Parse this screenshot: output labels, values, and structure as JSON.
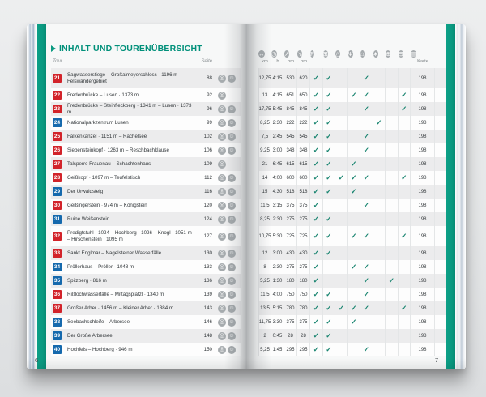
{
  "colors": {
    "teal_accent": "#0a9a81",
    "badge_red": "#d2232a",
    "badge_blue": "#1569ad",
    "check_teal": "#14826d"
  },
  "left_page": {
    "title": "INHALT UND TOURENÜBERSICHT",
    "col_tour": "Tour",
    "col_seite": "Seite",
    "folio": "6",
    "rows": [
      {
        "nr": "21",
        "color": "red",
        "title": "Sagwasserstiege – Großalmeyerschloss · 1196 m – Felswandergebiet",
        "seite": "88",
        "icons": [
          "camera",
          "smiley"
        ],
        "tall": true
      },
      {
        "nr": "22",
        "color": "red",
        "title": "Fredenbrücke – Lusen · 1373 m",
        "seite": "92",
        "icons": [
          "camera"
        ]
      },
      {
        "nr": "23",
        "color": "red",
        "title": "Fredenbrücke – Steinfleckberg · 1341 m – Lusen · 1373 m",
        "seite": "96",
        "icons": [
          "camera",
          "smiley"
        ]
      },
      {
        "nr": "24",
        "color": "blue",
        "title": "Nationalparkzentrum Lusen",
        "seite": "99",
        "icons": [
          "camera",
          "smiley"
        ]
      },
      {
        "nr": "25",
        "color": "red",
        "title": "Falkenkanzel · 1151 m – Rachelsee",
        "seite": "102",
        "icons": [
          "camera",
          "smiley"
        ]
      },
      {
        "nr": "26",
        "color": "red",
        "title": "Siebensteinkopf · 1263 m – Reschbachklause",
        "seite": "106",
        "icons": [
          "camera",
          "smiley"
        ]
      },
      {
        "nr": "27",
        "color": "red",
        "title": "Talsperre Frauenau – Schachtenhaus",
        "seite": "109",
        "icons": [
          "camera"
        ]
      },
      {
        "nr": "28",
        "color": "red",
        "title": "Geißkopf · 1097 m – Teufelstisch",
        "seite": "112",
        "icons": [
          "camera",
          "smiley"
        ]
      },
      {
        "nr": "29",
        "color": "blue",
        "title": "Der Urwaldsteig",
        "seite": "116",
        "icons": [
          "camera",
          "smiley"
        ]
      },
      {
        "nr": "30",
        "color": "red",
        "title": "Geißingerstein · 974 m – Königstein",
        "seite": "120",
        "icons": [
          "camera",
          "smiley"
        ]
      },
      {
        "nr": "31",
        "color": "blue",
        "title": "Ruine Weißenstein",
        "seite": "124",
        "icons": [
          "camera",
          "smiley"
        ]
      },
      {
        "nr": "32",
        "color": "red",
        "title": "Predigtstuhl · 1024 – Hochberg · 1026 – Knogl · 1051 m – Hirschenstein · 1095 m",
        "seite": "127",
        "icons": [
          "camera",
          "smiley"
        ],
        "tall": true
      },
      {
        "nr": "33",
        "color": "red",
        "title": "Sankt Englmar – Nagelsteiner Wasserfälle",
        "seite": "130",
        "icons": [
          "camera",
          "smiley"
        ]
      },
      {
        "nr": "34",
        "color": "blue",
        "title": "Pröllerhaus – Pröller · 1048 m",
        "seite": "133",
        "icons": [
          "camera",
          "smiley"
        ]
      },
      {
        "nr": "35",
        "color": "blue",
        "title": "Spitzberg · 816 m",
        "seite": "136",
        "icons": [
          "camera",
          "smiley"
        ]
      },
      {
        "nr": "36",
        "color": "red",
        "title": "Rißlochwasserfälle – Mittagsplatzl · 1340 m",
        "seite": "139",
        "icons": [
          "camera",
          "smiley"
        ]
      },
      {
        "nr": "37",
        "color": "red",
        "title": "Großer Arber · 1456 m – Kleiner Arber · 1384 m",
        "seite": "143",
        "icons": [
          "camera",
          "smiley"
        ]
      },
      {
        "nr": "38",
        "color": "blue",
        "title": "Seebachschleife – Arbersee",
        "seite": "146",
        "icons": [
          "camera",
          "smiley"
        ]
      },
      {
        "nr": "39",
        "color": "blue",
        "title": "Der Große Arbersee",
        "seite": "148",
        "icons": [
          "camera",
          "smiley"
        ]
      },
      {
        "nr": "40",
        "color": "blue",
        "title": "Hochfels – Hochberg · 946 m",
        "seite": "150",
        "icons": [
          "camera",
          "smiley"
        ]
      }
    ]
  },
  "mini_icon_glyphs": {
    "camera": "◎",
    "smiley": "☺"
  },
  "right_page": {
    "folio": "7",
    "karte_label": "Karte",
    "check_glyph": "✓",
    "unit_labels": [
      "km",
      "h",
      "hm",
      "hm"
    ],
    "header_icons": [
      {
        "name": "distance-icon",
        "glyph": "↔"
      },
      {
        "name": "duration-icon",
        "glyph": "◷"
      },
      {
        "name": "ascent-icon",
        "glyph": "↗"
      },
      {
        "name": "descent-icon",
        "glyph": "↘"
      },
      {
        "name": "parking-icon",
        "glyph": "P"
      },
      {
        "name": "bus-icon",
        "glyph": "⊞"
      },
      {
        "name": "cable-car-icon",
        "glyph": "△"
      },
      {
        "name": "restaurant-icon",
        "glyph": "Ψ"
      },
      {
        "name": "hut-icon",
        "glyph": "⌂"
      },
      {
        "name": "winter-icon",
        "glyph": "∗"
      },
      {
        "name": "wheel-icon",
        "glyph": "⊕"
      },
      {
        "name": "stroller-icon",
        "glyph": "⊟"
      },
      {
        "name": "map-icon",
        "glyph": "▤"
      }
    ],
    "feature_columns": [
      "parking",
      "bus",
      "cable-car",
      "restaurant",
      "hut",
      "winter",
      "wheel",
      "stroller"
    ],
    "rows": [
      {
        "km": "12,75",
        "h": "4:15",
        "up": "530",
        "down": "620",
        "checks": [
          1,
          1,
          0,
          0,
          1,
          0,
          0,
          0
        ],
        "karte": "198"
      },
      {
        "km": "13",
        "h": "4:15",
        "up": "651",
        "down": "650",
        "checks": [
          1,
          1,
          0,
          1,
          1,
          0,
          0,
          1
        ],
        "karte": "198"
      },
      {
        "km": "17,75",
        "h": "5:45",
        "up": "845",
        "down": "845",
        "checks": [
          1,
          1,
          0,
          0,
          1,
          0,
          0,
          1
        ],
        "karte": "198"
      },
      {
        "km": "8,25",
        "h": "2:30",
        "up": "222",
        "down": "222",
        "checks": [
          1,
          1,
          0,
          0,
          0,
          1,
          0,
          0
        ],
        "karte": "198"
      },
      {
        "km": "7,5",
        "h": "2:45",
        "up": "545",
        "down": "545",
        "checks": [
          1,
          1,
          0,
          0,
          1,
          0,
          0,
          0
        ],
        "karte": "198"
      },
      {
        "km": "9,25",
        "h": "3:00",
        "up": "348",
        "down": "348",
        "checks": [
          1,
          1,
          0,
          0,
          1,
          0,
          0,
          0
        ],
        "karte": "198"
      },
      {
        "km": "21",
        "h": "6:45",
        "up": "615",
        "down": "615",
        "checks": [
          1,
          1,
          0,
          1,
          0,
          0,
          0,
          0
        ],
        "karte": "198"
      },
      {
        "km": "14",
        "h": "4:00",
        "up": "600",
        "down": "600",
        "checks": [
          1,
          1,
          1,
          1,
          1,
          0,
          0,
          1
        ],
        "karte": "198"
      },
      {
        "km": "15",
        "h": "4:30",
        "up": "518",
        "down": "518",
        "checks": [
          1,
          1,
          0,
          1,
          0,
          0,
          0,
          0
        ],
        "karte": "198"
      },
      {
        "km": "11,5",
        "h": "3:15",
        "up": "375",
        "down": "375",
        "checks": [
          1,
          0,
          0,
          0,
          1,
          0,
          0,
          0
        ],
        "karte": "198"
      },
      {
        "km": "8,25",
        "h": "2:30",
        "up": "275",
        "down": "275",
        "checks": [
          1,
          1,
          0,
          0,
          0,
          0,
          0,
          0
        ],
        "karte": "198"
      },
      {
        "km": "10,75",
        "h": "5:30",
        "up": "725",
        "down": "725",
        "checks": [
          1,
          1,
          0,
          1,
          1,
          0,
          0,
          1
        ],
        "karte": "198"
      },
      {
        "km": "12",
        "h": "3:00",
        "up": "430",
        "down": "430",
        "checks": [
          1,
          1,
          0,
          0,
          0,
          0,
          0,
          0
        ],
        "karte": "198"
      },
      {
        "km": "8",
        "h": "2:30",
        "up": "275",
        "down": "275",
        "checks": [
          1,
          0,
          0,
          1,
          1,
          0,
          0,
          0
        ],
        "karte": "198"
      },
      {
        "km": "5,25",
        "h": "1:30",
        "up": "180",
        "down": "180",
        "checks": [
          1,
          0,
          0,
          0,
          1,
          0,
          1,
          0
        ],
        "karte": "198"
      },
      {
        "km": "11,5",
        "h": "4:00",
        "up": "750",
        "down": "750",
        "checks": [
          1,
          1,
          0,
          0,
          1,
          0,
          0,
          0
        ],
        "karte": "198"
      },
      {
        "km": "13,5",
        "h": "5:15",
        "up": "780",
        "down": "780",
        "checks": [
          1,
          1,
          1,
          1,
          1,
          0,
          0,
          1
        ],
        "karte": "198"
      },
      {
        "km": "11,75",
        "h": "3:30",
        "up": "375",
        "down": "375",
        "checks": [
          1,
          1,
          0,
          1,
          0,
          0,
          0,
          0
        ],
        "karte": "198"
      },
      {
        "km": "2",
        "h": "0:45",
        "up": "28",
        "down": "28",
        "checks": [
          1,
          1,
          0,
          0,
          0,
          0,
          0,
          0
        ],
        "karte": "198"
      },
      {
        "km": "5,25",
        "h": "1:45",
        "up": "295",
        "down": "295",
        "checks": [
          1,
          1,
          0,
          0,
          1,
          0,
          0,
          0
        ],
        "karte": "198"
      }
    ]
  }
}
